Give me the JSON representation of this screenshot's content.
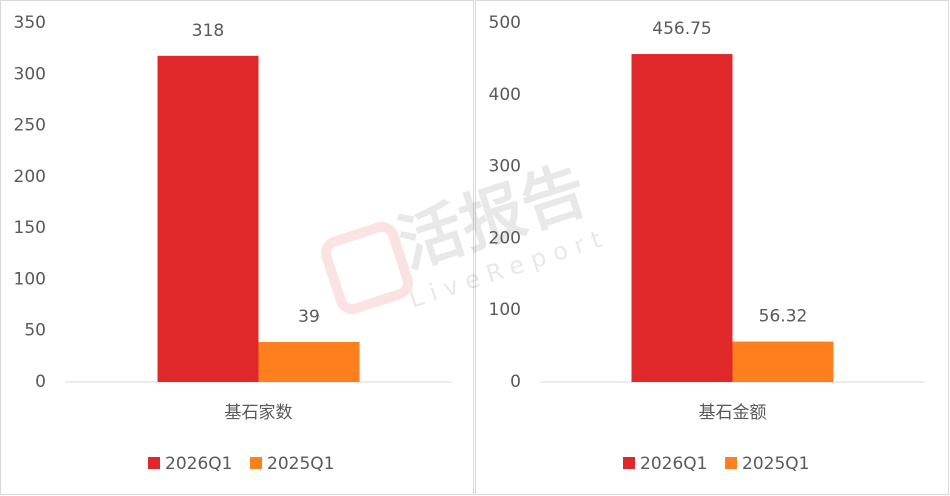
{
  "chart_data": [
    {
      "type": "bar",
      "categories": [
        "基石家数"
      ],
      "series": [
        {
          "name": "2026Q1",
          "color": "#e0282b",
          "values": [
            318
          ]
        },
        {
          "name": "2025Q1",
          "color": "#fd7f1e",
          "values": [
            39
          ]
        }
      ],
      "ylim": [
        0,
        350
      ],
      "yticks": [
        0,
        50,
        100,
        150,
        200,
        250,
        300,
        350
      ],
      "legend": "bottom"
    },
    {
      "type": "bar",
      "categories": [
        "基石金额"
      ],
      "series": [
        {
          "name": "2026Q1",
          "color": "#e0282b",
          "values": [
            456.75
          ]
        },
        {
          "name": "2025Q1",
          "color": "#fd7f1e",
          "values": [
            56.32
          ]
        }
      ],
      "ylim": [
        0,
        500
      ],
      "yticks": [
        0,
        100,
        200,
        300,
        400,
        500
      ],
      "legend": "bottom"
    }
  ],
  "watermark": {
    "text": "活报告",
    "subtext": "LiveReport"
  }
}
